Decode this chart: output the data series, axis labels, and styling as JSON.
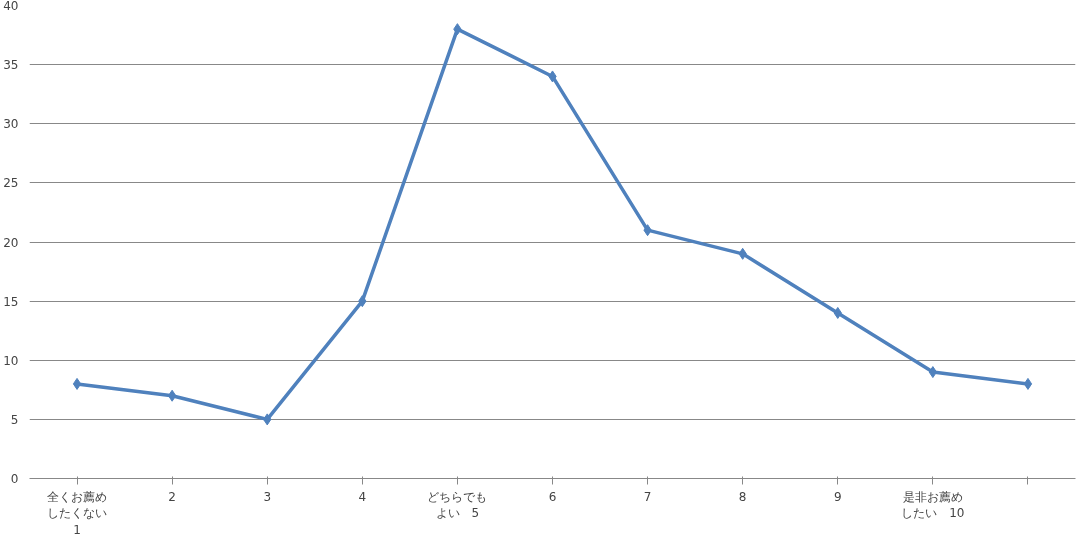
{
  "chart_data": {
    "type": "line",
    "categories": [
      "全くお薦めしたくない1",
      "2",
      "3",
      "4",
      "どちらでもよい　5",
      "6",
      "7",
      "8",
      "9",
      "是非お薦めしたい　10",
      null
    ],
    "series": [
      {
        "color": "#4f81bd",
        "values": [
          8,
          7,
          5,
          15,
          38,
          34,
          21,
          19,
          14,
          9,
          8
        ]
      }
    ],
    "ylim": [
      0,
      40
    ],
    "yticks": [
      0,
      5,
      10,
      15,
      20,
      25,
      30,
      35,
      40
    ],
    "grid": "y",
    "marker": "diamond",
    "line_style": "solid"
  }
}
